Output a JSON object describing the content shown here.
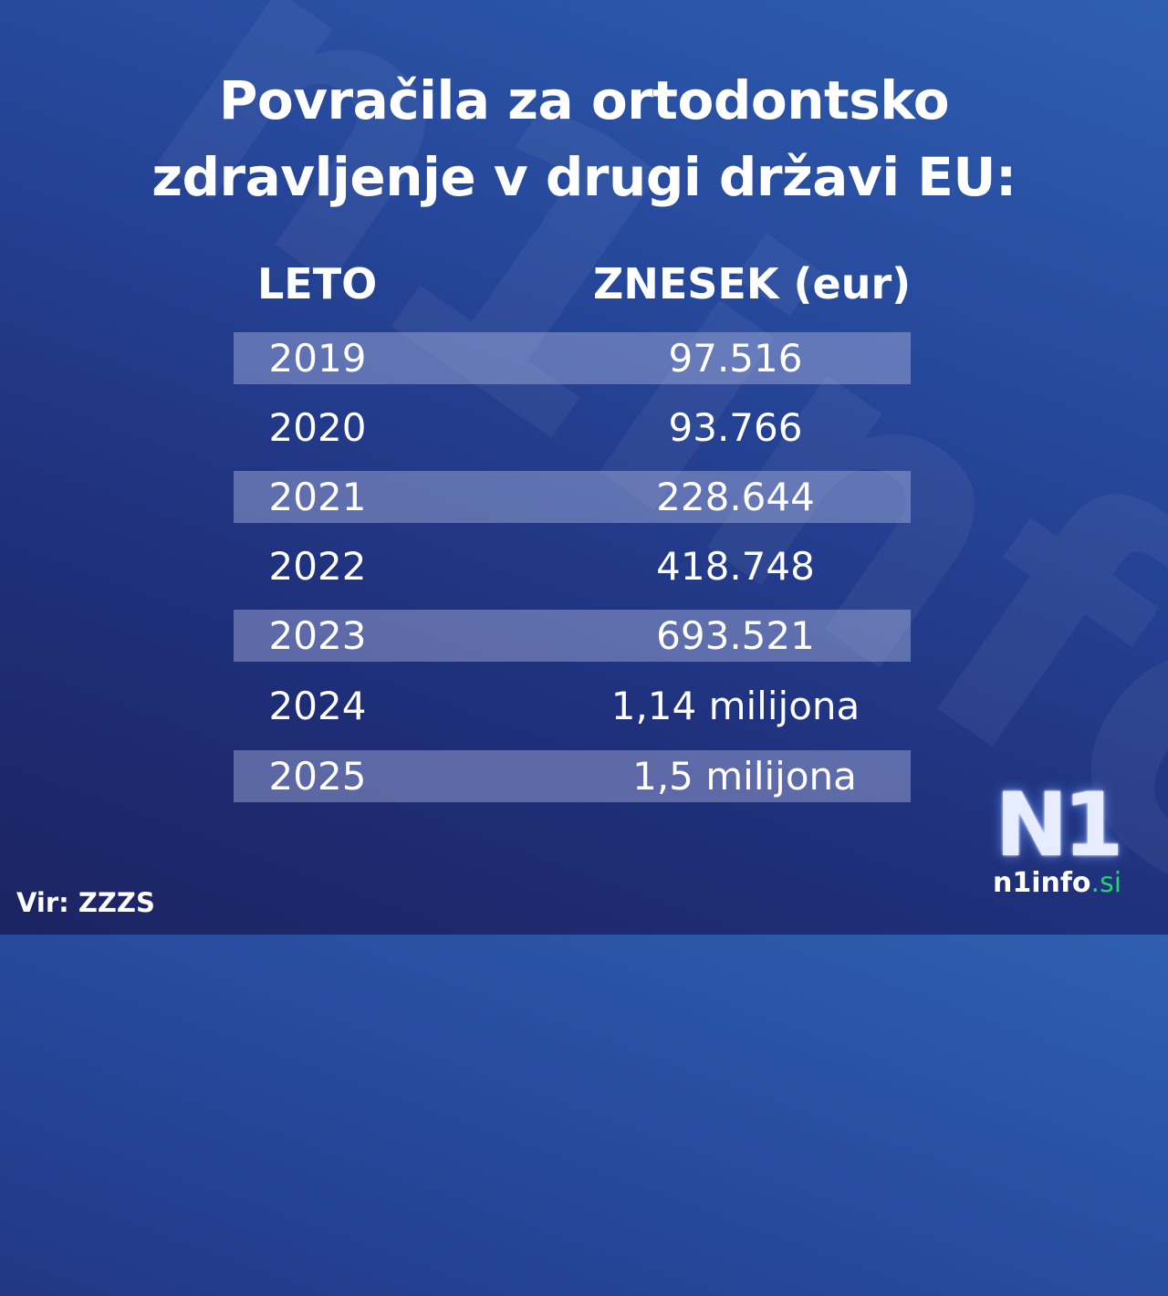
{
  "title_line1": "Povračila za ortodontsko",
  "title_line2": "zdravljenje v drugi državi EU:",
  "headers": {
    "year": "LETO",
    "amount": "ZNESEK (eur)"
  },
  "rows": [
    {
      "year": "2019",
      "amount": "97.516"
    },
    {
      "year": "2020",
      "amount": "93.766"
    },
    {
      "year": "2021",
      "amount": "228.644"
    },
    {
      "year": "2022",
      "amount": "418.748"
    },
    {
      "year": "2023",
      "amount": "693.521"
    },
    {
      "year": "2024",
      "amount": "1,14 milijona"
    },
    {
      "year": "2025",
      "amount": "1,5 milijona"
    }
  ],
  "source": "Vir: ZZZS",
  "logo": {
    "mark": "N1",
    "text": "n1info",
    "tld": ".si"
  },
  "colors": {
    "background": "#26479a",
    "stripe": "#6a78b0",
    "logo_accent": "#25d46a"
  },
  "chart_data": {
    "type": "table",
    "title": "Povračila za ortodontsko zdravljenje v drugi državi EU:",
    "columns": [
      "LETO",
      "ZNESEK (eur)"
    ],
    "rows": [
      [
        "2019",
        "97.516"
      ],
      [
        "2020",
        "93.766"
      ],
      [
        "2021",
        "228.644"
      ],
      [
        "2022",
        "418.748"
      ],
      [
        "2023",
        "693.521"
      ],
      [
        "2024",
        "1,14 milijona"
      ],
      [
        "2025",
        "1,5 milijona"
      ]
    ]
  }
}
